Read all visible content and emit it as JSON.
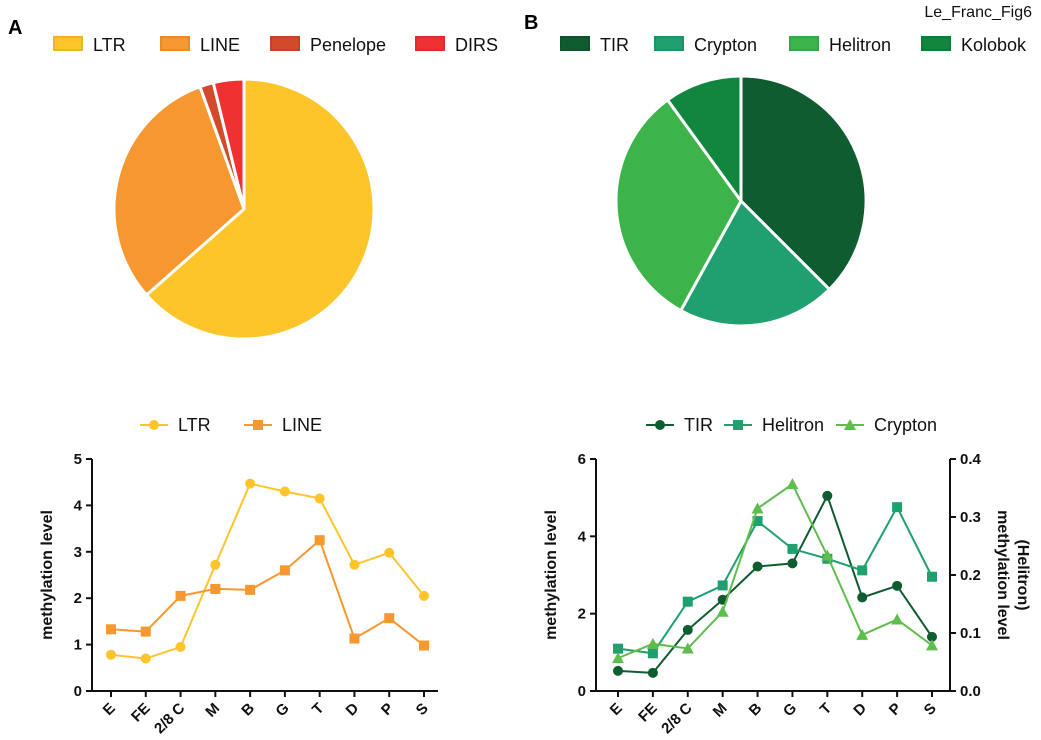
{
  "figure_label": "Le_Franc_Fig6",
  "panels": {
    "a": "A",
    "b": "B"
  },
  "colors": {
    "LTR": "#fdc52a",
    "LINE": "#f7972f",
    "Penelope": "#d24a2a",
    "DIRS": "#ef3131",
    "TIR": "#0f5c31",
    "Crypton": "#1fa06e",
    "Helitron": "#3cb44a",
    "Kolobok": "#11863f",
    "line_Crypton": "#5fbd4e"
  },
  "chart_data": [
    {
      "id": "pie-A",
      "type": "pie",
      "legend": [
        "LTR",
        "LINE",
        "Penelope",
        "DIRS"
      ],
      "legend_placement": "top",
      "slices": [
        {
          "label": "LTR",
          "value": 63.5
        },
        {
          "label": "LINE",
          "value": 31.0
        },
        {
          "label": "Penelope",
          "value": 1.7
        },
        {
          "label": "DIRS",
          "value": 3.8
        }
      ]
    },
    {
      "id": "pie-B",
      "type": "pie",
      "legend": [
        "TIR",
        "Crypton",
        "Helitron",
        "Kolobok"
      ],
      "legend_placement": "top",
      "slices": [
        {
          "label": "TIR",
          "value": 37.5
        },
        {
          "label": "Crypton",
          "value": 20.5
        },
        {
          "label": "Helitron",
          "value": 32.0
        },
        {
          "label": "Kolobok",
          "value": 10.0
        }
      ]
    },
    {
      "id": "line-A",
      "type": "line",
      "categories": [
        "E",
        "FE",
        "2/8 C",
        "M",
        "B",
        "G",
        "T",
        "D",
        "P",
        "S"
      ],
      "ylabel": "methylation level",
      "ylim": [
        0,
        5
      ],
      "yticks": [
        "0",
        "1",
        "2",
        "3",
        "4",
        "5"
      ],
      "legend_placement": "top",
      "series": [
        {
          "name": "LTR",
          "marker": "circle",
          "values": [
            0.78,
            0.7,
            0.95,
            2.72,
            4.47,
            4.3,
            4.15,
            2.72,
            2.98,
            2.05
          ]
        },
        {
          "name": "LINE",
          "marker": "square",
          "values": [
            1.33,
            1.28,
            2.05,
            2.2,
            2.18,
            2.6,
            3.25,
            1.13,
            1.57,
            0.98
          ]
        }
      ]
    },
    {
      "id": "line-B",
      "type": "line",
      "categories": [
        "E",
        "FE",
        "2/8 C",
        "M",
        "B",
        "G",
        "T",
        "D",
        "P",
        "S"
      ],
      "ylabel": "methylation level",
      "ylabel_right": "methylation level",
      "ylabel_right_sub": "(Helitron)",
      "ylim": [
        0,
        6
      ],
      "yticks": [
        "0",
        "2",
        "4",
        "6"
      ],
      "ylim_right": [
        0,
        0.4
      ],
      "yticks_right": [
        "0.0",
        "0.1",
        "0.2",
        "0.3",
        "0.4"
      ],
      "legend_placement": "top",
      "series": [
        {
          "name": "TIR",
          "marker": "circle",
          "axis": "left",
          "values": [
            0.52,
            0.47,
            1.58,
            2.36,
            3.22,
            3.3,
            5.05,
            2.42,
            2.72,
            1.4
          ]
        },
        {
          "name": "Helitron",
          "marker": "square",
          "axis": "right",
          "values": [
            0.073,
            0.065,
            0.154,
            0.182,
            0.293,
            0.245,
            0.228,
            0.208,
            0.317,
            0.197
          ]
        },
        {
          "name": "Crypton",
          "marker": "triangle",
          "axis": "left",
          "values": [
            0.85,
            1.22,
            1.1,
            2.05,
            4.72,
            5.35,
            3.5,
            1.45,
            1.85,
            1.18
          ]
        }
      ]
    }
  ]
}
